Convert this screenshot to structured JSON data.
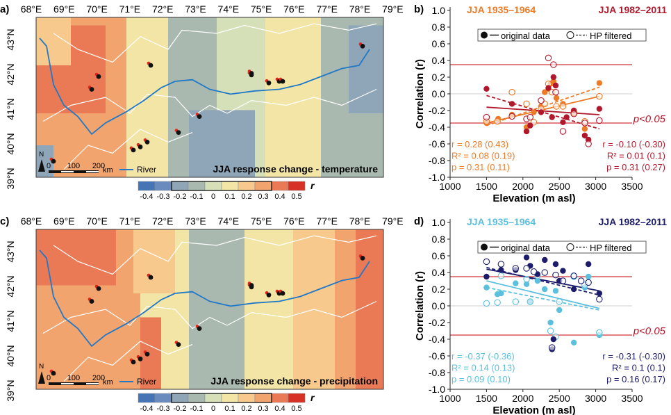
{
  "map_common": {
    "lon_ticks": [
      "68°E",
      "69°E",
      "70°E",
      "71°E",
      "72°E",
      "73°E",
      "74°E",
      "75°E",
      "76°E",
      "77°E",
      "78°E",
      "79°E"
    ],
    "lat_ticks": [
      "43°N",
      "42°N",
      "41°N",
      "40°N",
      "39°N"
    ],
    "north_label": "N",
    "scale_ticks": [
      "0",
      "100",
      "200"
    ],
    "scale_unit": "km",
    "river_label": "River",
    "colorbar_ticks": [
      "-0.4",
      "-0.3",
      "-0.2",
      "-0.1",
      "0",
      "0.1",
      "0.2",
      "0.3",
      "0.4",
      "0.5"
    ],
    "colorbar_symbol": "r",
    "colorbar_colors": [
      "#4575b4",
      "#6a8bbd",
      "#8fa5b8",
      "#a9b9b0",
      "#d6e0b8",
      "#f3e5a6",
      "#f7c98c",
      "#f1a46e",
      "#ea7a55",
      "#d73027"
    ]
  },
  "panel_a": {
    "letter": "a)",
    "title": "JJA response change - temperature",
    "zones": [
      {
        "rect": [
          0.0,
          0.0,
          0.26,
          1.0
        ],
        "value": 0.3
      },
      {
        "rect": [
          0.26,
          0.0,
          0.38,
          1.0
        ],
        "value": 0.1
      },
      {
        "rect": [
          0.38,
          0.0,
          0.52,
          1.0
        ],
        "value": -0.1
      },
      {
        "rect": [
          0.52,
          0.0,
          0.66,
          1.0
        ],
        "value": 0.0
      },
      {
        "rect": [
          0.66,
          0.0,
          0.82,
          1.0
        ],
        "value": 0.1
      },
      {
        "rect": [
          0.82,
          0.0,
          1.0,
          1.0
        ],
        "value": -0.1
      },
      {
        "rect": [
          0.0,
          0.05,
          0.2,
          0.6
        ],
        "value": 0.4
      },
      {
        "rect": [
          0.0,
          0.0,
          0.1,
          0.3
        ],
        "value": 0.2
      },
      {
        "rect": [
          0.44,
          0.58,
          0.63,
          1.0
        ],
        "value": -0.2
      },
      {
        "rect": [
          0.9,
          0.05,
          1.0,
          0.6
        ],
        "value": -0.2
      },
      {
        "rect": [
          0.0,
          0.8,
          0.05,
          1.0
        ],
        "value": -0.2
      }
    ]
  },
  "panel_c": {
    "letter": "c)",
    "title": "JJA response change - precipitation",
    "zones": [
      {
        "rect": [
          0.0,
          0.0,
          0.3,
          1.0
        ],
        "value": 0.3
      },
      {
        "rect": [
          0.3,
          0.0,
          0.44,
          1.0
        ],
        "value": 0.1
      },
      {
        "rect": [
          0.44,
          0.0,
          0.6,
          1.0
        ],
        "value": -0.1
      },
      {
        "rect": [
          0.6,
          0.0,
          0.74,
          1.0
        ],
        "value": 0.1
      },
      {
        "rect": [
          0.74,
          0.0,
          0.86,
          1.0
        ],
        "value": 0.2
      },
      {
        "rect": [
          0.86,
          0.0,
          1.0,
          1.0
        ],
        "value": 0.3
      },
      {
        "rect": [
          0.0,
          0.0,
          0.23,
          0.35
        ],
        "value": 0.4
      },
      {
        "rect": [
          0.92,
          0.0,
          1.0,
          1.0
        ],
        "value": 0.4
      },
      {
        "rect": [
          0.3,
          0.55,
          0.36,
          1.0
        ],
        "value": 0.4
      },
      {
        "rect": [
          0.28,
          0.0,
          0.4,
          0.4
        ],
        "value": 0.2
      }
    ]
  },
  "map_stations": [
    [
      0.18,
      0.37
    ],
    [
      0.16,
      0.45
    ],
    [
      0.33,
      0.3
    ],
    [
      0.62,
      0.36
    ],
    [
      0.62,
      0.35
    ],
    [
      0.67,
      0.41
    ],
    [
      0.7,
      0.4
    ],
    [
      0.71,
      0.4
    ],
    [
      0.94,
      0.18
    ],
    [
      0.47,
      0.62
    ],
    [
      0.41,
      0.72
    ],
    [
      0.32,
      0.78
    ],
    [
      0.3,
      0.81
    ],
    [
      0.28,
      0.83
    ],
    [
      0.05,
      0.9
    ]
  ],
  "river_path": [
    [
      0.01,
      0.13
    ],
    [
      0.03,
      0.18
    ],
    [
      0.05,
      0.42
    ],
    [
      0.08,
      0.55
    ],
    [
      0.12,
      0.62
    ],
    [
      0.16,
      0.73
    ],
    [
      0.2,
      0.66
    ],
    [
      0.26,
      0.59
    ],
    [
      0.31,
      0.52
    ],
    [
      0.36,
      0.44
    ],
    [
      0.4,
      0.4
    ],
    [
      0.45,
      0.39
    ],
    [
      0.5,
      0.45
    ],
    [
      0.56,
      0.48
    ],
    [
      0.63,
      0.46
    ],
    [
      0.7,
      0.45
    ],
    [
      0.76,
      0.42
    ],
    [
      0.82,
      0.37
    ],
    [
      0.88,
      0.32
    ],
    [
      0.93,
      0.3
    ],
    [
      0.96,
      0.2
    ]
  ],
  "panel_b": {
    "letter": "b)",
    "legend_a": "JJA 1935–1964",
    "legend_b": "JJA 1982–2011",
    "color_a": "#ec7a26",
    "color_b": "#b2182b",
    "legend_original": "original data",
    "legend_hp": "HP filtered",
    "significance_label": "p<0.05",
    "stats_a": {
      "r": "r = 0.28 (0.43)",
      "r2": "R² = 0.08 (0.19)",
      "p": "p = 0.31 (0.11)"
    },
    "stats_b": {
      "r": "r = -0.10 (-0.30)",
      "r2": "R² = 0.01 (0.1)",
      "p": "p = 0.31 (0.27)"
    }
  },
  "panel_d": {
    "letter": "d)",
    "legend_a": "JJA 1935–1964",
    "legend_b": "JJA 1982–2011",
    "color_a": "#5bc0de",
    "color_b": "#1c1c6b",
    "legend_original": "original data",
    "legend_hp": "HP filtered",
    "significance_label": "p<0.05",
    "stats_a": {
      "r": "r = -0.37 (-0.36)",
      "r2": "R² = 0.14 (0.13)",
      "p": "p = 0.09 (0.10)"
    },
    "stats_b": {
      "r": "r = -0.31 (-0.30)",
      "r2": "R² = 0.1 (0.1)",
      "p": "p = 0.16 (0.17)"
    }
  },
  "chart_data": [
    {
      "type": "scatter",
      "panel": "b",
      "xlabel": "Elevation (m asl)",
      "ylabel": "Correlation (r)",
      "xlim": [
        1000,
        3500
      ],
      "ylim": [
        -1.0,
        1.0
      ],
      "x_ticks": [
        1000,
        1500,
        2000,
        2500,
        3000,
        3500
      ],
      "y_ticks": [
        -1.0,
        -0.8,
        -0.6,
        -0.4,
        -0.2,
        0.0,
        0.2,
        0.4,
        0.6,
        0.8,
        1.0
      ],
      "significance_lines": [
        0.35,
        -0.35
      ],
      "series": [
        {
          "name": "JJA 1935–1964",
          "kind": "original",
          "x": [
            1500,
            1660,
            1850,
            2050,
            2150,
            2250,
            2300,
            2350,
            2380,
            2420,
            2460,
            2550,
            2700,
            2850,
            3050
          ],
          "y": [
            -0.35,
            -0.3,
            -0.25,
            -0.4,
            -0.22,
            -0.15,
            0.02,
            0.06,
            0.12,
            0.15,
            -0.05,
            -0.12,
            -0.24,
            -0.42,
            0.13
          ]
        },
        {
          "name": "JJA 1935–1964",
          "kind": "hp",
          "x": [
            1500,
            1650,
            1850,
            2050,
            2150,
            2250,
            2300,
            2350,
            2400,
            2460,
            2550,
            2700,
            2850,
            3050
          ],
          "y": [
            -0.33,
            -0.33,
            0.02,
            -0.12,
            -0.34,
            -0.18,
            -0.12,
            0.12,
            0.02,
            -0.15,
            -0.15,
            -0.22,
            -0.33,
            -0.03
          ]
        },
        {
          "name": "JJA 1982–2011",
          "kind": "original",
          "x": [
            1500,
            1850,
            2050,
            2100,
            2250,
            2350,
            2400,
            2420,
            2450,
            2550,
            2600,
            2700,
            2850,
            2900,
            3050
          ],
          "y": [
            0.06,
            -0.12,
            -0.45,
            -0.38,
            -0.22,
            0.07,
            -0.28,
            0.2,
            0.1,
            -0.34,
            -0.28,
            -0.2,
            -0.5,
            -0.55,
            -0.18
          ]
        },
        {
          "name": "JJA 1982–2011",
          "kind": "hp",
          "x": [
            1500,
            1850,
            2050,
            2100,
            2250,
            2350,
            2420,
            2450,
            2550,
            2700,
            2850,
            2900,
            3050
          ],
          "y": [
            -0.28,
            -0.27,
            -0.3,
            -0.28,
            -0.08,
            0.43,
            0.35,
            0.02,
            -0.45,
            -0.24,
            -0.35,
            -0.6,
            -0.32
          ]
        }
      ],
      "trendlines": [
        {
          "name": "JJA 1935–1964",
          "kind": "original",
          "x": [
            1500,
            3050
          ],
          "y": [
            -0.35,
            -0.03
          ]
        },
        {
          "name": "JJA 1935–1964",
          "kind": "hp",
          "x": [
            1500,
            3050
          ],
          "y": [
            -0.38,
            0.08
          ]
        },
        {
          "name": "JJA 1982–2011",
          "kind": "original",
          "x": [
            1500,
            3050
          ],
          "y": [
            -0.16,
            -0.25
          ]
        },
        {
          "name": "JJA 1982–2011",
          "kind": "hp",
          "x": [
            1500,
            3050
          ],
          "y": [
            -0.02,
            -0.42
          ]
        }
      ]
    },
    {
      "type": "scatter",
      "panel": "d",
      "xlabel": "Elevation (m asl)",
      "ylabel": "Correlation (r)",
      "xlim": [
        1000,
        3500
      ],
      "ylim": [
        -1.0,
        1.0
      ],
      "x_ticks": [
        1000,
        1500,
        2000,
        2500,
        3000,
        3500
      ],
      "y_ticks": [
        -1.0,
        -0.8,
        -0.6,
        -0.4,
        -0.2,
        0.0,
        0.2,
        0.4,
        0.6,
        0.8,
        1.0
      ],
      "significance_lines": [
        0.35,
        -0.35
      ],
      "series": [
        {
          "name": "JJA 1935–1964",
          "kind": "original",
          "x": [
            1500,
            1650,
            1700,
            1900,
            2050,
            2100,
            2200,
            2300,
            2380,
            2450,
            2500,
            2700,
            2850,
            2900,
            3050
          ],
          "y": [
            0.22,
            0.14,
            0.15,
            0.27,
            0.26,
            0.05,
            0.3,
            0.2,
            -0.2,
            0.18,
            -0.05,
            -0.44,
            0.22,
            0.35,
            -0.35
          ]
        },
        {
          "name": "JJA 1935–1964",
          "kind": "hp",
          "x": [
            1500,
            1650,
            1700,
            1900,
            2050,
            2100,
            2200,
            2380,
            2450,
            2500,
            2700,
            2850,
            3050
          ],
          "y": [
            0.03,
            0.04,
            0.36,
            0.05,
            0.32,
            0.05,
            0.36,
            -0.3,
            -0.37,
            0.05,
            0.35,
            0.25,
            -0.32
          ]
        },
        {
          "name": "JJA 1982–2011",
          "kind": "original",
          "x": [
            1500,
            1700,
            1900,
            2050,
            2100,
            2200,
            2300,
            2400,
            2420,
            2450,
            2500,
            2550,
            2700,
            2900,
            3050
          ],
          "y": [
            0.35,
            0.43,
            0.43,
            0.58,
            0.48,
            0.38,
            0.55,
            -0.52,
            -0.4,
            0.5,
            0.3,
            0.42,
            0.2,
            0.5,
            0.15
          ]
        },
        {
          "name": "JJA 1982–2011",
          "kind": "hp",
          "x": [
            1500,
            1700,
            1900,
            2050,
            2150,
            2300,
            2400,
            2450,
            2550,
            2700,
            2800,
            2900,
            3050
          ],
          "y": [
            0.53,
            0.5,
            0.45,
            0.45,
            0.41,
            0.4,
            -0.5,
            0.37,
            0.3,
            0.36,
            0.3,
            0.28,
            0.08
          ]
        }
      ],
      "trendlines": [
        {
          "name": "JJA 1935–1964",
          "kind": "original",
          "x": [
            1500,
            3050
          ],
          "y": [
            0.3,
            -0.03
          ]
        },
        {
          "name": "JJA 1935–1964",
          "kind": "hp",
          "x": [
            1500,
            3050
          ],
          "y": [
            0.22,
            -0.05
          ]
        },
        {
          "name": "JJA 1982–2011",
          "kind": "original",
          "x": [
            1500,
            3050
          ],
          "y": [
            0.44,
            0.18
          ]
        },
        {
          "name": "JJA 1982–2011",
          "kind": "hp",
          "x": [
            1500,
            3050
          ],
          "y": [
            0.46,
            0.13
          ]
        }
      ]
    }
  ]
}
